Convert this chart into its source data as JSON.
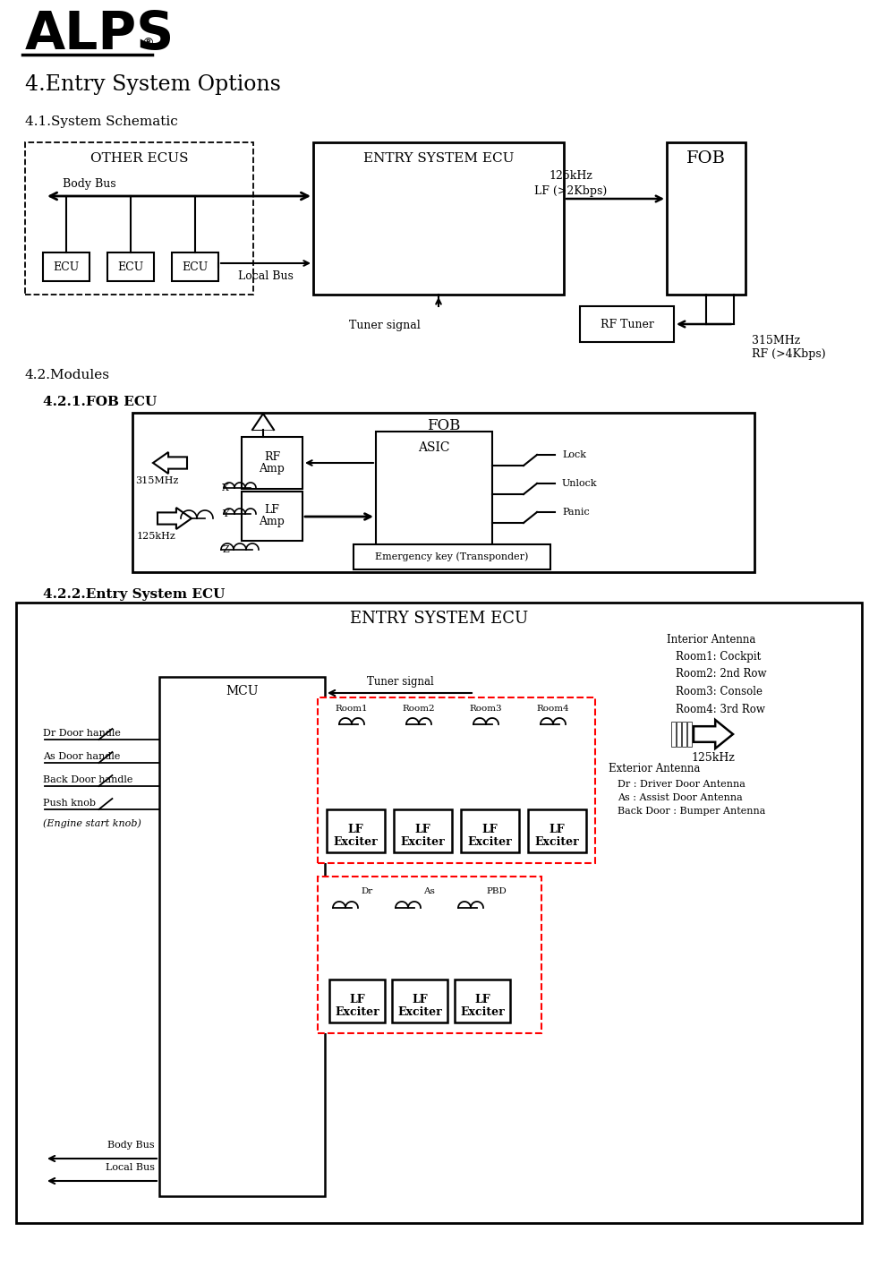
{
  "bg_color": "#ffffff",
  "alps_text": "ALPS",
  "alps_reg": "®",
  "title": "4.Entry System Options",
  "s41": "4.1.System Schematic",
  "s42": "4.2.Modules",
  "s421": "4.2.1.FOB ECU",
  "s422": "4.2.2.Entry System ECU",
  "other_ecus": "OTHER ECUS",
  "entry_ecu": "ENTRY SYSTEM ECU",
  "fob": "FOB",
  "body_bus": "Body Bus",
  "local_bus": "Local Bus",
  "ecu": "ECU",
  "lf_label": "125kHz\nLF (>2Kbps)",
  "rf_tuner": "RF Tuner",
  "tuner_signal": "Tuner signal",
  "mhz315": "315MHz",
  "rf4k": "RF (>4Kbps)",
  "asic": "ASIC",
  "rf_amp": "RF\nAmp",
  "lf_amp": "LF\nAmp",
  "lock": "Lock",
  "unlock": "Unlock",
  "panic": "Panic",
  "emergency": "Emergency key (Transponder)",
  "interior_ant": "Interior Antenna",
  "room1": "Room1: Cockpit",
  "room2": "Room2: 2nd Row",
  "room3": "Room3: Console",
  "room4": "Room4: 3rd Row",
  "khz125": "125kHz",
  "ext_ant": "Exterior Antenna",
  "dr_ant": "Dr : Driver Door Antenna",
  "as_ant": "As : Assist Door Antenna",
  "bd_ant": "Back Door : Bumper Antenna",
  "dr_door": "Dr Door handle",
  "as_door": "As Door handle",
  "bk_door": "Back Door handle",
  "push_knob": "Push knob",
  "eng_knob": "(Engine start knob)",
  "mcu": "MCU",
  "lf_exciter": "LF\nExciter",
  "room_labels": [
    "Room1",
    "Room2",
    "Room3",
    "Room4"
  ],
  "ext_labels": [
    "Dr",
    "As",
    "PBD"
  ]
}
